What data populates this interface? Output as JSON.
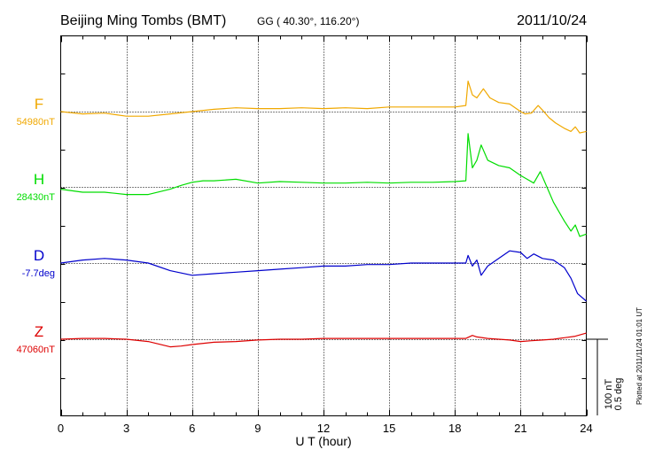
{
  "header": {
    "station": "Beijing Ming Tombs (BMT)",
    "coords": "GG ( 40.30°, 116.20°)",
    "date": "2011/10/24"
  },
  "xaxis": {
    "label": "U T (hour)",
    "ticks": [
      "0",
      "3",
      "6",
      "9",
      "12",
      "15",
      "18",
      "21",
      "24"
    ]
  },
  "scale": {
    "line1": "100 nT",
    "line2": "0.5 deg"
  },
  "plotted": "Plotted at 2011/11/24 01:01 UT",
  "colors": {
    "F": "#f0a800",
    "H": "#00dd00",
    "D": "#0000cc",
    "Z": "#dd0000",
    "axis": "#000000"
  },
  "chart_data": {
    "type": "line",
    "title": "Beijing Ming Tombs (BMT)",
    "xlabel": "U T (hour)",
    "ylabel": "",
    "xlim": [
      0,
      24
    ],
    "grid": true,
    "scale_bar": "100 nT / 0.5 deg",
    "series": [
      {
        "name": "F",
        "baseline_label": "54980nT",
        "unit": "nT",
        "color": "#f0a800",
        "x": [
          0,
          1,
          2,
          3,
          4,
          5,
          6,
          7,
          8,
          9,
          10,
          11,
          12,
          13,
          14,
          15,
          16,
          17,
          18,
          18.5,
          18.6,
          18.8,
          19,
          19.3,
          19.6,
          20,
          20.5,
          21,
          21.2,
          21.5,
          21.8,
          22,
          22.3,
          22.6,
          23,
          23.3,
          23.5,
          23.7,
          24
        ],
        "y": [
          0,
          -3,
          -2,
          -6,
          -6,
          -3,
          0,
          3,
          5,
          4,
          4,
          5,
          4,
          5,
          4,
          6,
          6,
          6,
          6,
          8,
          40,
          22,
          18,
          30,
          18,
          12,
          10,
          0,
          -3,
          -2,
          8,
          2,
          -8,
          -15,
          -22,
          -26,
          -20,
          -28,
          -26
        ]
      },
      {
        "name": "H",
        "baseline_label": "28430nT",
        "unit": "nT",
        "color": "#00dd00",
        "x": [
          0,
          1,
          2,
          3,
          4,
          5,
          5.5,
          6,
          6.5,
          7,
          8,
          9,
          10,
          11,
          12,
          13,
          14,
          15,
          16,
          17,
          18,
          18.5,
          18.6,
          18.8,
          19,
          19.2,
          19.5,
          20,
          20.5,
          21,
          21.3,
          21.6,
          21.9,
          22.2,
          22.5,
          23,
          23.3,
          23.5,
          23.7,
          24
        ],
        "y": [
          -3,
          -7,
          -7,
          -10,
          -10,
          -3,
          2,
          6,
          8,
          8,
          10,
          5,
          7,
          6,
          5,
          5,
          6,
          5,
          6,
          6,
          7,
          8,
          70,
          25,
          35,
          55,
          35,
          28,
          25,
          15,
          10,
          5,
          20,
          0,
          -20,
          -45,
          -58,
          -50,
          -65,
          -62
        ]
      },
      {
        "name": "D",
        "baseline_label": "-7.7deg",
        "unit": "deg",
        "color": "#0000cc",
        "x": [
          0,
          1,
          2,
          3,
          4,
          5,
          6,
          7,
          8,
          9,
          10,
          11,
          12,
          13,
          14,
          15,
          16,
          17,
          18,
          18.5,
          18.6,
          18.8,
          19,
          19.2,
          19.5,
          20,
          20.5,
          21,
          21.3,
          21.6,
          22,
          22.5,
          23,
          23.3,
          23.6,
          24
        ],
        "y": [
          0,
          0.02,
          0.03,
          0.02,
          0,
          -0.05,
          -0.08,
          -0.07,
          -0.06,
          -0.05,
          -0.04,
          -0.03,
          -0.02,
          -0.02,
          -0.01,
          -0.01,
          0,
          0,
          0,
          0,
          0.05,
          -0.02,
          0.02,
          -0.08,
          -0.02,
          0.03,
          0.08,
          0.07,
          0.03,
          0.06,
          0.03,
          0.02,
          -0.03,
          -0.1,
          -0.2,
          -0.25
        ]
      },
      {
        "name": "Z",
        "baseline_label": "47060nT",
        "unit": "nT",
        "color": "#dd0000",
        "x": [
          0,
          1,
          2,
          3,
          4,
          5,
          5.5,
          6,
          7,
          8,
          9,
          10,
          11,
          12,
          13,
          14,
          15,
          16,
          17,
          18,
          18.5,
          18.8,
          19,
          19.5,
          20,
          20.5,
          21,
          21.5,
          22,
          22.5,
          23,
          23.5,
          24
        ],
        "y": [
          0,
          1,
          1,
          0,
          -3,
          -10,
          -9,
          -7,
          -4,
          -3,
          -1,
          0,
          0,
          1,
          1,
          1,
          1,
          1,
          1,
          1,
          1,
          5,
          3,
          1,
          0,
          -1,
          -3,
          -2,
          -1,
          0,
          2,
          4,
          8
        ]
      }
    ]
  }
}
